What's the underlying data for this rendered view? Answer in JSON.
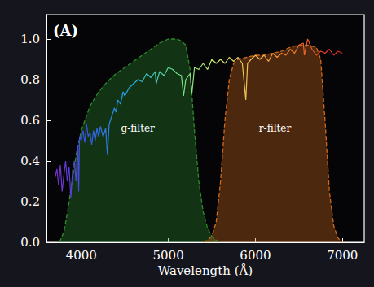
{
  "chart_data": {
    "type": "line",
    "panel_label": "(A)",
    "x_label": "Wavelength (Å)",
    "xlim": [
      3600,
      7250
    ],
    "xticks": [
      4000,
      5000,
      6000,
      7000
    ],
    "ylim": [
      0,
      1.12
    ],
    "yticks": [
      {
        "value": 0,
        "label": "0.0"
      },
      {
        "value": 0.2,
        "label": "0.2"
      },
      {
        "value": 0.4,
        "label": "0.4"
      },
      {
        "value": 0.6,
        "label": "0.6"
      },
      {
        "value": 0.8,
        "label": "0.8"
      },
      {
        "value": 1.0,
        "label": "1.0"
      }
    ],
    "grid": false,
    "series": [
      {
        "name": "g-filter",
        "type": "area",
        "color": "#2e8b2e",
        "line_style": "dashed",
        "x": [
          3750,
          3800,
          3850,
          3900,
          3950,
          4000,
          4100,
          4200,
          4300,
          4400,
          4500,
          4600,
          4700,
          4800,
          4900,
          5000,
          5100,
          5150,
          5200,
          5250,
          5300,
          5350,
          5400,
          5450,
          5500,
          5550,
          5600
        ],
        "values": [
          0,
          0.05,
          0.17,
          0.32,
          0.45,
          0.55,
          0.67,
          0.74,
          0.79,
          0.83,
          0.86,
          0.89,
          0.92,
          0.95,
          0.98,
          1.0,
          1.0,
          0.99,
          0.97,
          0.85,
          0.55,
          0.3,
          0.15,
          0.07,
          0.03,
          0.01,
          0
        ]
      },
      {
        "name": "r-filter",
        "type": "area",
        "color": "#d2691e",
        "line_style": "dashed",
        "x": [
          5400,
          5450,
          5500,
          5550,
          5600,
          5650,
          5700,
          5750,
          5800,
          5900,
          6000,
          6100,
          6200,
          6300,
          6400,
          6500,
          6600,
          6700,
          6750,
          6800,
          6850,
          6900,
          6950,
          7000
        ],
        "values": [
          0,
          0.01,
          0.03,
          0.1,
          0.3,
          0.6,
          0.8,
          0.88,
          0.9,
          0.91,
          0.92,
          0.92,
          0.93,
          0.94,
          0.96,
          0.97,
          0.97,
          0.96,
          0.9,
          0.6,
          0.25,
          0.08,
          0.02,
          0
        ]
      },
      {
        "type": "line",
        "line_style": "solid",
        "x": [
          3700,
          3720,
          3740,
          3760,
          3780,
          3800,
          3820,
          3840,
          3860,
          3880,
          3900,
          3920,
          3940,
          3960,
          3970,
          3980,
          4000,
          4020,
          4040,
          4060,
          4080,
          4100,
          4120,
          4140,
          4160,
          4180,
          4200,
          4220,
          4250,
          4280,
          4300,
          4320,
          4350,
          4380,
          4400,
          4420,
          4450,
          4480,
          4500,
          4550,
          4600,
          4650,
          4700,
          4750,
          4800,
          4850,
          4860,
          4900,
          4950,
          5000,
          5050,
          5100,
          5150,
          5175,
          5200,
          5250,
          5270,
          5300,
          5350,
          5400,
          5450,
          5500,
          5550,
          5600,
          5650,
          5700,
          5750,
          5800,
          5850,
          5890,
          5910,
          5950,
          6000,
          6050,
          6100,
          6150,
          6200,
          6250,
          6300,
          6350,
          6400,
          6450,
          6500,
          6550,
          6563,
          6600,
          6650,
          6700,
          6750,
          6800,
          6850,
          6900,
          6950,
          7000
        ],
        "values": [
          0.32,
          0.36,
          0.28,
          0.38,
          0.25,
          0.33,
          0.4,
          0.3,
          0.37,
          0.22,
          0.35,
          0.4,
          0.3,
          0.48,
          0.25,
          0.52,
          0.5,
          0.55,
          0.49,
          0.58,
          0.52,
          0.54,
          0.48,
          0.55,
          0.5,
          0.56,
          0.52,
          0.57,
          0.52,
          0.56,
          0.43,
          0.58,
          0.62,
          0.66,
          0.64,
          0.7,
          0.68,
          0.74,
          0.72,
          0.76,
          0.78,
          0.8,
          0.79,
          0.83,
          0.81,
          0.84,
          0.78,
          0.84,
          0.82,
          0.86,
          0.85,
          0.83,
          0.82,
          0.72,
          0.8,
          0.83,
          0.73,
          0.86,
          0.85,
          0.88,
          0.85,
          0.9,
          0.88,
          0.9,
          0.88,
          0.91,
          0.89,
          0.91,
          0.88,
          0.7,
          0.88,
          0.9,
          0.92,
          0.9,
          0.92,
          0.89,
          0.93,
          0.91,
          0.93,
          0.92,
          0.95,
          0.93,
          0.97,
          0.98,
          0.92,
          1.0,
          0.95,
          0.92,
          0.94,
          0.93,
          0.95,
          0.92,
          0.94,
          0.93
        ]
      }
    ]
  }
}
